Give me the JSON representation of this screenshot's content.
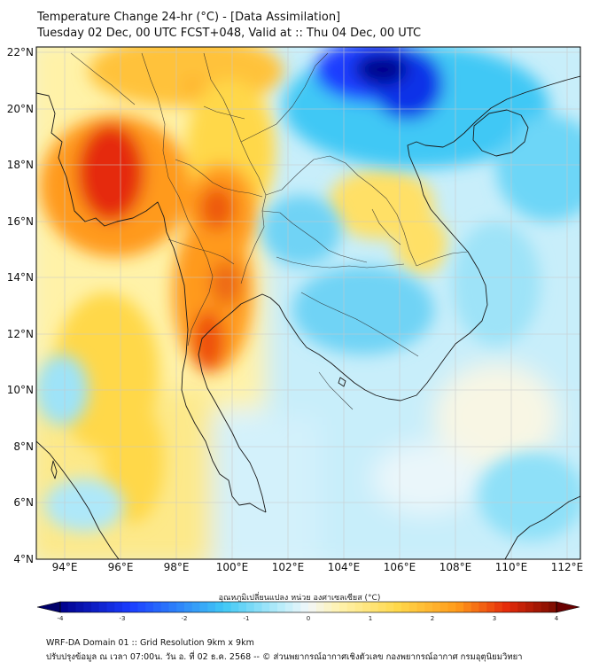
{
  "title": {
    "line1": "Temperature Change 24-hr (°C) - [Data Assimilation]",
    "line2": "Tuesday 02 Dec, 00 UTC FCST+048, Valid at :: Thu 04 Dec, 00 UTC"
  },
  "map": {
    "lat_labels": [
      "22°N",
      "20°N",
      "18°N",
      "16°N",
      "14°N",
      "12°N",
      "10°N",
      "8°N",
      "6°N",
      "4°N"
    ],
    "lon_labels": [
      "94°E",
      "96°E",
      "98°E",
      "100°E",
      "102°E",
      "104°E",
      "106°E",
      "108°E",
      "110°E",
      "112°E"
    ]
  },
  "colorbar": {
    "title": "อุณหภูมิเปลี่ยนแปลง หน่วย องศาเซลเซียส (°C)",
    "ticks": [
      "-4",
      "-3",
      "-2",
      "-1",
      "0",
      "1",
      "2",
      "3",
      "4"
    ],
    "min_value": -4,
    "max_value": 4
  },
  "footer": {
    "line1": "WRF-DA Domain 01 :: Grid Resolution 9km x 9km",
    "line2": "ปรับปรุงข้อมูล ณ เวลา 07:00น. วัน อ. ที่ 02 ธ.ค. 2568 -- © ส่วนพยากรณ์อากาศเชิงตัวเลข กองพยากรณ์อากาศ กรมอุตุนิยมวิทยา"
  },
  "colors": {
    "deep_blue": "#00008b",
    "blue": "#1a3cff",
    "cyan": "#40c8f5",
    "light_cyan": "#bfeefa",
    "neutral": "#f2f7fa",
    "light_yellow": "#fff3b0",
    "yellow": "#ffd84a",
    "orange": "#ff9a1a",
    "red": "#e52a0a",
    "dark_red": "#7a0a00"
  }
}
